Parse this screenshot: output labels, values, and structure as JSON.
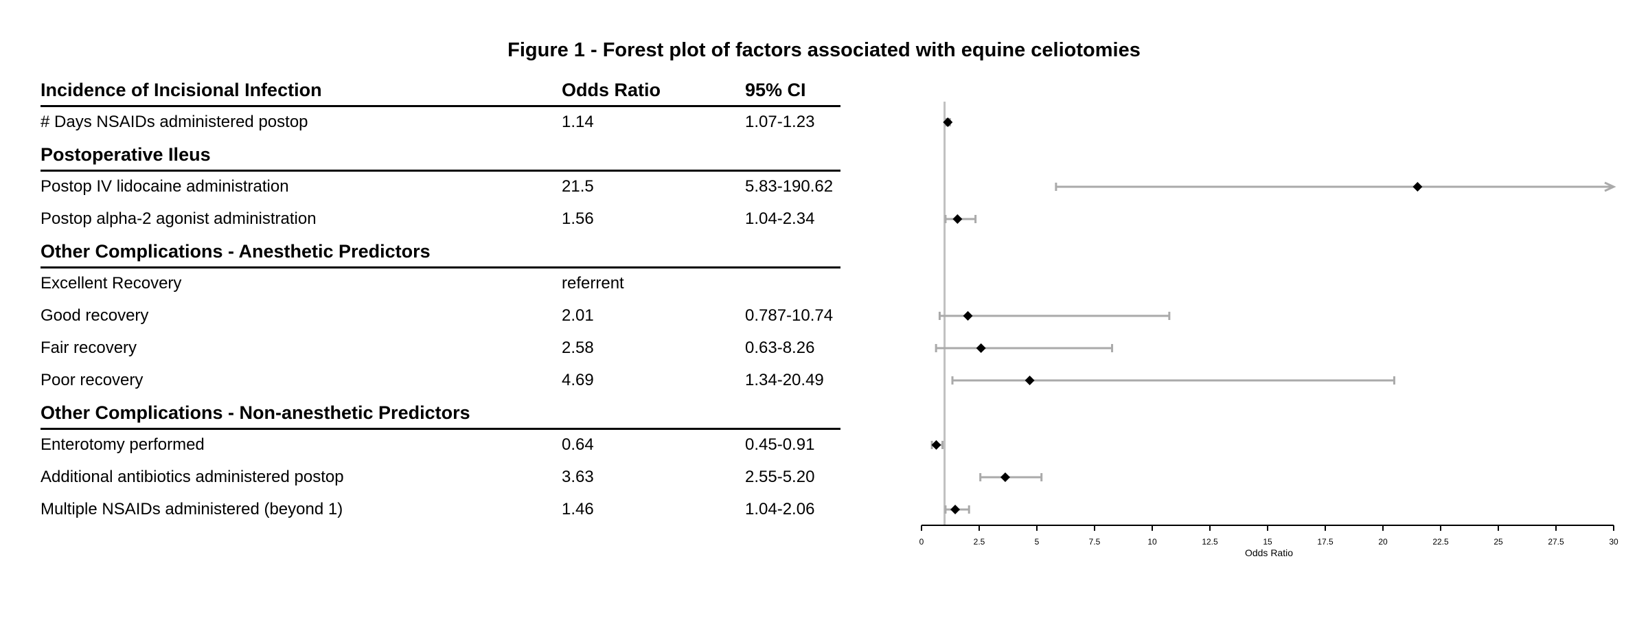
{
  "figure": {
    "title": "Figure 1 - Forest plot of factors associated with equine celiotomies"
  },
  "table": {
    "header": {
      "factor": "Incidence of Incisional Infection",
      "odds_ratio": "Odds Ratio",
      "ci": "95% CI"
    },
    "rows": [
      {
        "kind": "data",
        "factor": "# Days NSAIDs administered postop",
        "odds_ratio": "1.14",
        "ci": "1.07-1.23"
      },
      {
        "kind": "section",
        "factor": "Postoperative Ileus",
        "odds_ratio": "",
        "ci": ""
      },
      {
        "kind": "data",
        "factor": "Postop IV lidocaine administration",
        "odds_ratio": "21.5",
        "ci": "5.83-190.62"
      },
      {
        "kind": "data",
        "factor": "Postop alpha-2 agonist administration",
        "odds_ratio": "1.56",
        "ci": "1.04-2.34"
      },
      {
        "kind": "section",
        "factor": "Other Complications - Anesthetic Predictors",
        "odds_ratio": "",
        "ci": ""
      },
      {
        "kind": "data",
        "factor": "Excellent Recovery",
        "odds_ratio": "referrent",
        "ci": ""
      },
      {
        "kind": "data",
        "factor": "Good recovery",
        "odds_ratio": "2.01",
        "ci": "0.787-10.74"
      },
      {
        "kind": "data",
        "factor": "Fair recovery",
        "odds_ratio": "2.58",
        "ci": "0.63-8.26"
      },
      {
        "kind": "data",
        "factor": "Poor recovery",
        "odds_ratio": "4.69",
        "ci": "1.34-20.49"
      },
      {
        "kind": "section",
        "factor": "Other Complications - Non-anesthetic Predictors",
        "odds_ratio": "",
        "ci": ""
      },
      {
        "kind": "data",
        "factor": "Enterotomy performed",
        "odds_ratio": "0.64",
        "ci": "0.45-0.91"
      },
      {
        "kind": "data",
        "factor": "Additional antibiotics administered postop",
        "odds_ratio": "3.63",
        "ci": "2.55-5.20"
      },
      {
        "kind": "data",
        "factor": "Multiple NSAIDs administered (beyond 1)",
        "odds_ratio": "1.46",
        "ci": "1.04-2.06"
      }
    ]
  },
  "chart_data": {
    "type": "scatter",
    "subtype": "forest-plot",
    "title": "Figure 1 - Forest plot of factors associated with equine celiotomies",
    "xlabel": "Odds Ratio",
    "xlim": [
      0,
      30
    ],
    "xticks": [
      0,
      2.5,
      5,
      7.5,
      10,
      12.5,
      15,
      17.5,
      20,
      22.5,
      25,
      27.5,
      30
    ],
    "xtick_labels": [
      "0",
      "2.5",
      "5",
      "7.5",
      "10",
      "12.5",
      "15",
      "17.5",
      "20",
      "22.5",
      "25",
      "27.5",
      "30"
    ],
    "reference_line": 1,
    "grid": false,
    "rows": [
      {
        "label": "# Days NSAIDs administered postop",
        "or": 1.14,
        "lower": 1.07,
        "upper": 1.23,
        "upper_truncated": false
      },
      {
        "label": "Postop IV lidocaine administration",
        "or": 21.5,
        "lower": 5.83,
        "upper": 190.62,
        "upper_truncated": true
      },
      {
        "label": "Postop alpha-2 agonist administration",
        "or": 1.56,
        "lower": 1.04,
        "upper": 2.34,
        "upper_truncated": false
      },
      {
        "label": "Good recovery",
        "or": 2.01,
        "lower": 0.787,
        "upper": 10.74,
        "upper_truncated": false
      },
      {
        "label": "Fair recovery",
        "or": 2.58,
        "lower": 0.63,
        "upper": 8.26,
        "upper_truncated": false
      },
      {
        "label": "Poor recovery",
        "or": 4.69,
        "lower": 1.34,
        "upper": 20.49,
        "upper_truncated": false
      },
      {
        "label": "Enterotomy performed",
        "or": 0.64,
        "lower": 0.45,
        "upper": 0.91,
        "upper_truncated": false
      },
      {
        "label": "Additional antibiotics administered postop",
        "or": 3.63,
        "lower": 2.55,
        "upper": 5.2,
        "upper_truncated": false
      },
      {
        "label": "Multiple NSAIDs administered (beyond 1)",
        "or": 1.46,
        "lower": 1.04,
        "upper": 2.06,
        "upper_truncated": false
      }
    ],
    "colors": {
      "ci_line": "#aaaaaa",
      "point": "#000000",
      "axis": "#000000",
      "reference": "#c0c0c0"
    }
  }
}
